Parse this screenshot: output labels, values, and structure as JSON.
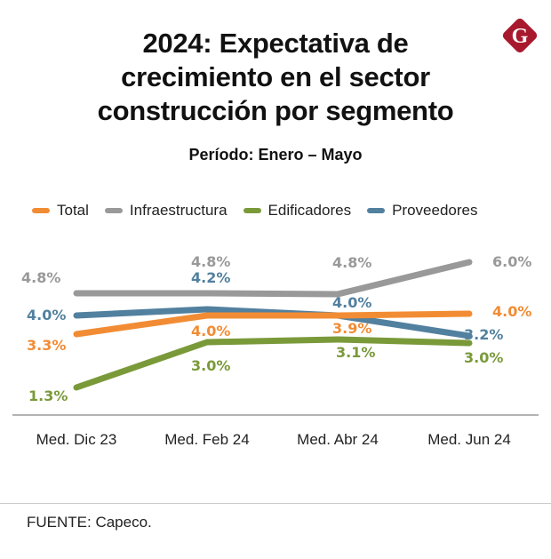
{
  "header": {
    "title_lines": [
      "2024: Expectativa de",
      "crecimiento en el sector",
      "construcción por segmento"
    ],
    "subtitle": "Período: Enero – Mayo",
    "logo_letter": "G"
  },
  "footer": {
    "source": "FUENTE: Capeco."
  },
  "chart_data": {
    "type": "line",
    "title": "2024: Expectativa de crecimiento en el sector construcción por segmento",
    "subtitle": "Período: Enero – Mayo",
    "xlabel": "",
    "ylabel": "",
    "categories": [
      "Med. Dic 23",
      "Med. Feb 24",
      "Med. Abr 24",
      "Med. Jun 24"
    ],
    "legend_position": "top",
    "grid": false,
    "series": [
      {
        "name": "Total",
        "color": "#f28c34",
        "values": [
          3.3,
          4.0,
          3.9,
          4.0
        ],
        "labels": [
          "3.3%",
          "4.0%",
          "3.9%",
          "4.0%"
        ]
      },
      {
        "name": "Infraestructura",
        "color": "#999999",
        "values": [
          4.8,
          4.8,
          4.8,
          6.0
        ],
        "labels": [
          "4.8%",
          "4.8%",
          "4.8%",
          "6.0%"
        ]
      },
      {
        "name": "Edificadores",
        "color": "#7a9a3a",
        "values": [
          1.3,
          3.0,
          3.1,
          3.0
        ],
        "labels": [
          "1.3%",
          "3.0%",
          "3.1%",
          "3.0%"
        ]
      },
      {
        "name": "Proveedores",
        "color": "#52809f",
        "values": [
          4.0,
          4.2,
          4.0,
          3.2
        ],
        "labels": [
          "4.0%",
          "4.2%",
          "4.0%",
          "3.2%"
        ]
      }
    ]
  }
}
